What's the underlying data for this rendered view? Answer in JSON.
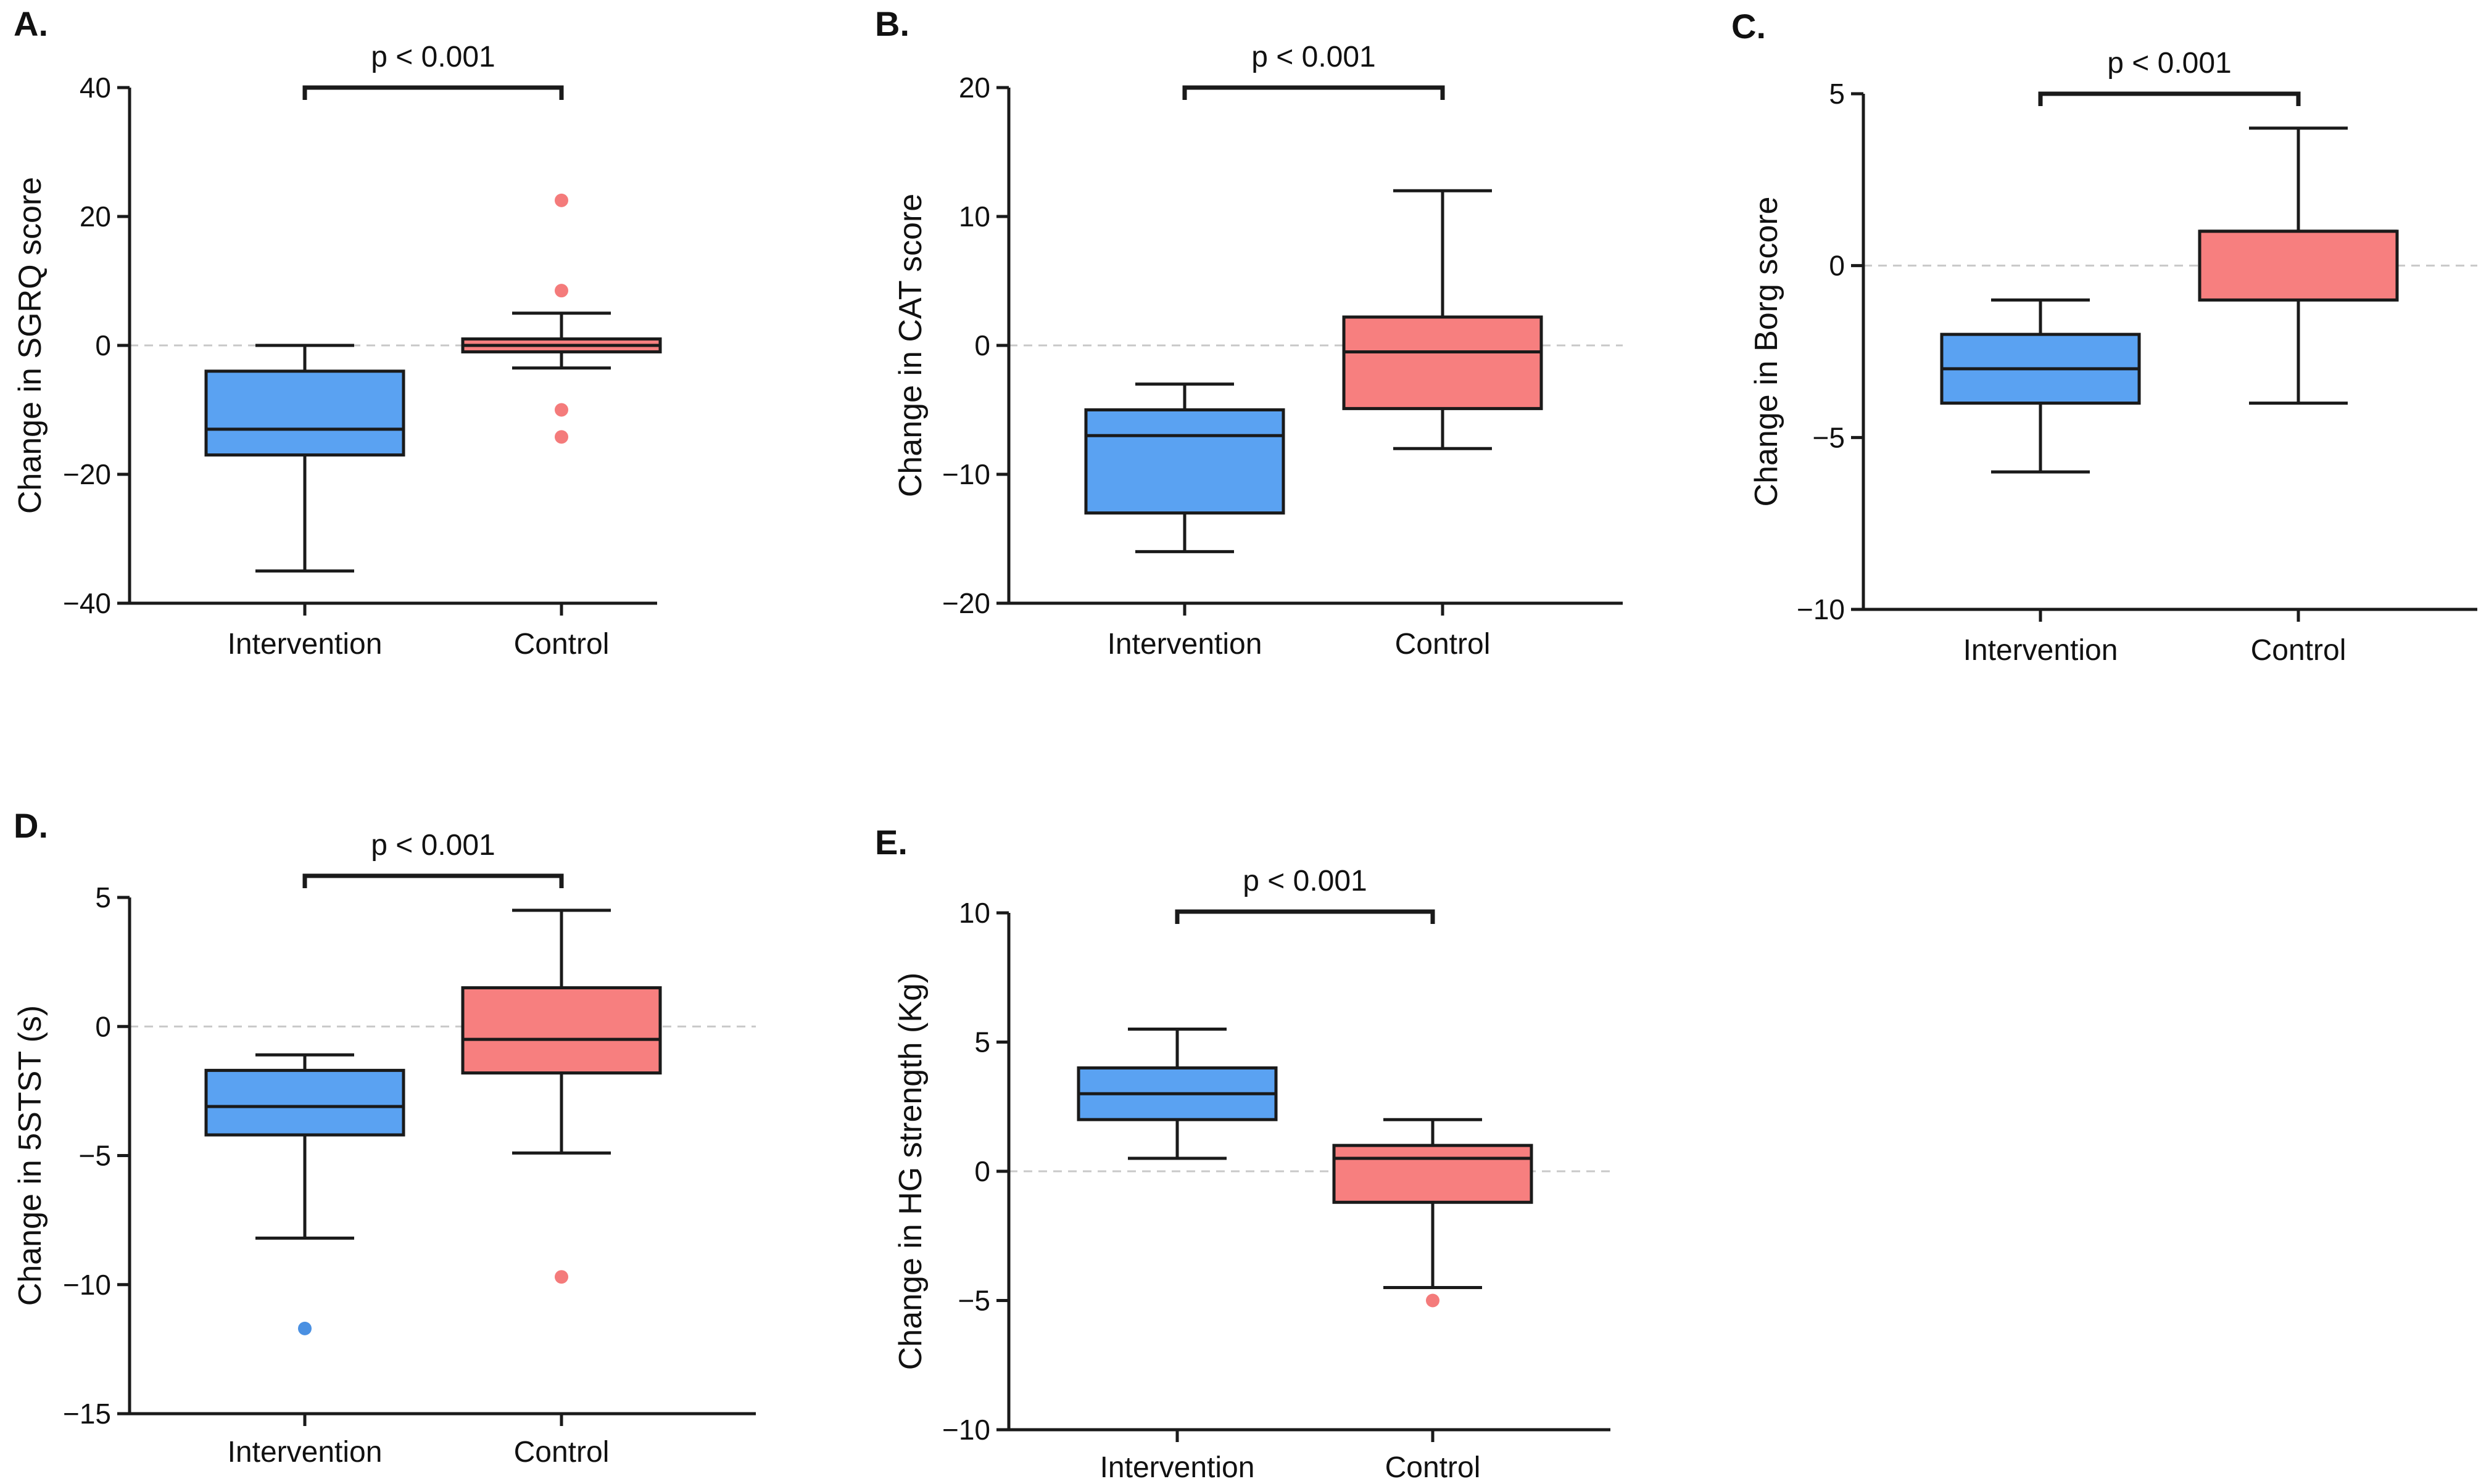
{
  "colors": {
    "intervention_fill": "#5aa2f2",
    "control_fill": "#f77f7f",
    "intervention_outlier": "#4a90e2",
    "control_outlier": "#f47b7b",
    "stroke": "#1a1a1a",
    "zero_line": "#c8c8c8"
  },
  "chart_data": [
    {
      "type": "box",
      "panel": "A.",
      "ylabel": "Change in SGRQ score",
      "ylim": [
        -40,
        40
      ],
      "yticks": [
        40,
        20,
        0,
        -20,
        -40
      ],
      "ytick_labels": [
        "40",
        "20",
        "0",
        "−20",
        "−40"
      ],
      "categories": [
        "Intervention",
        "Control"
      ],
      "significance": "p < 0.001",
      "zero_line": true,
      "boxes": [
        {
          "name": "Intervention",
          "whisker_low": -35,
          "q1": -17,
          "median": -13,
          "q3": -4,
          "whisker_high": 0,
          "outliers": []
        },
        {
          "name": "Control",
          "whisker_low": -3.5,
          "q1": -1,
          "median": 0,
          "q3": 1,
          "whisker_high": 5,
          "outliers": [
            22.5,
            8.5,
            -10,
            -14.2
          ]
        }
      ]
    },
    {
      "type": "box",
      "panel": "B.",
      "ylabel": "Change in CAT score",
      "ylim": [
        -20,
        20
      ],
      "yticks": [
        20,
        10,
        0,
        -10,
        -20
      ],
      "ytick_labels": [
        "20",
        "10",
        "0",
        "−10",
        "−20"
      ],
      "categories": [
        "Intervention",
        "Control"
      ],
      "significance": "p < 0.001",
      "zero_line": true,
      "boxes": [
        {
          "name": "Intervention",
          "whisker_low": -16,
          "q1": -13,
          "median": -7,
          "q3": -5,
          "whisker_high": -3,
          "outliers": []
        },
        {
          "name": "Control",
          "whisker_low": -8,
          "q1": -4.9,
          "median": -0.5,
          "q3": 2.2,
          "whisker_high": 12,
          "outliers": []
        }
      ]
    },
    {
      "type": "box",
      "panel": "C.",
      "ylabel": "Change in Borg score",
      "ylim": [
        -10,
        5
      ],
      "yticks": [
        5,
        0,
        -5,
        -10
      ],
      "ytick_labels": [
        "5",
        "0",
        "−5",
        "−10"
      ],
      "categories": [
        "Intervention",
        "Control"
      ],
      "significance": "p < 0.001",
      "zero_line": true,
      "boxes": [
        {
          "name": "Intervention",
          "whisker_low": -6,
          "q1": -4,
          "median": -3,
          "q3": -2,
          "whisker_high": -1,
          "outliers": []
        },
        {
          "name": "Control",
          "whisker_low": -4,
          "q1": -1,
          "median": 1,
          "q3": 1,
          "whisker_high": 4,
          "outliers": []
        }
      ]
    },
    {
      "type": "box",
      "panel": "D.",
      "ylabel": "Change in 5STST (s)",
      "ylim": [
        -15,
        5
      ],
      "yticks": [
        5,
        0,
        -5,
        -10,
        -15
      ],
      "ytick_labels": [
        "5",
        "0",
        "−5",
        "−10",
        "−15"
      ],
      "categories": [
        "Intervention",
        "Control"
      ],
      "significance": "p < 0.001",
      "zero_line": true,
      "boxes": [
        {
          "name": "Intervention",
          "whisker_low": -8.2,
          "q1": -4.2,
          "median": -3.1,
          "q3": -1.7,
          "whisker_high": -1.1,
          "outliers": [
            -11.7
          ]
        },
        {
          "name": "Control",
          "whisker_low": -4.9,
          "q1": -1.8,
          "median": -0.5,
          "q3": 1.5,
          "whisker_high": 4.5,
          "outliers": [
            -9.7
          ]
        }
      ]
    },
    {
      "type": "box",
      "panel": "E.",
      "ylabel": "Change in HG strength (Kg)",
      "ylim": [
        -10,
        10
      ],
      "yticks": [
        10,
        5,
        0,
        -5,
        -10
      ],
      "ytick_labels": [
        "10",
        "5",
        "0",
        "−5",
        "−10"
      ],
      "categories": [
        "Intervention",
        "Control"
      ],
      "significance": "p < 0.001",
      "zero_line": true,
      "boxes": [
        {
          "name": "Intervention",
          "whisker_low": 0.5,
          "q1": 2,
          "median": 3,
          "q3": 4,
          "whisker_high": 5.5,
          "outliers": []
        },
        {
          "name": "Control",
          "whisker_low": -4.5,
          "q1": -1.2,
          "median": 0.5,
          "q3": 1,
          "whisker_high": 2,
          "outliers": [
            -5
          ]
        }
      ]
    }
  ]
}
